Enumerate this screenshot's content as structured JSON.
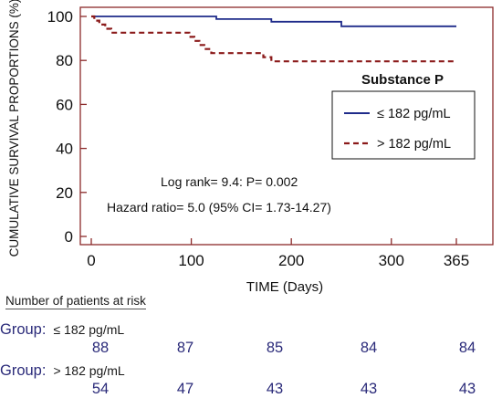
{
  "chart_data": {
    "type": "line",
    "title": "",
    "xlabel": "TIME (Days)",
    "ylabel": "CUMULATIVE SURVIVAL PROPORTIONS (%)",
    "xlim": [
      0,
      365
    ],
    "ylim": [
      0,
      100
    ],
    "xticks": [
      0,
      100,
      200,
      300,
      365
    ],
    "yticks": [
      0,
      20,
      40,
      60,
      80,
      100
    ],
    "grid": false,
    "legend": {
      "title": "Substance P",
      "placement": "right",
      "entries": [
        "≤ 182 pg/mL",
        "> 182 pg/mL"
      ]
    },
    "series": [
      {
        "name": "≤ 182 pg/mL",
        "color": "#1f2b8a",
        "style": "solid",
        "step_points": [
          [
            0,
            100
          ],
          [
            125,
            100
          ],
          [
            125,
            98.8
          ],
          [
            180,
            98.8
          ],
          [
            180,
            97.6
          ],
          [
            250,
            97.6
          ],
          [
            250,
            96.4
          ],
          [
            250,
            95.5
          ],
          [
            365,
            95.5
          ]
        ]
      },
      {
        "name": "> 182 pg/mL",
        "color": "#8b1a1a",
        "style": "dashed",
        "step_points": [
          [
            0,
            100
          ],
          [
            3,
            100
          ],
          [
            3,
            98.1
          ],
          [
            8,
            98.1
          ],
          [
            8,
            96.3
          ],
          [
            14,
            96.3
          ],
          [
            14,
            94.4
          ],
          [
            20,
            94.4
          ],
          [
            20,
            92.6
          ],
          [
            98,
            92.6
          ],
          [
            98,
            90.7
          ],
          [
            103,
            90.7
          ],
          [
            103,
            88.9
          ],
          [
            108,
            88.9
          ],
          [
            108,
            87
          ],
          [
            113,
            87
          ],
          [
            113,
            85.2
          ],
          [
            120,
            85.2
          ],
          [
            120,
            83.3
          ],
          [
            172,
            83.3
          ],
          [
            172,
            81.5
          ],
          [
            180,
            81.5
          ],
          [
            180,
            79.6
          ],
          [
            365,
            79.6
          ]
        ]
      }
    ],
    "annotations": [
      "Log rank= 9.4: P= 0.002",
      "Hazard ratio= 5.0 (95% CI= 1.73-14.27)"
    ]
  },
  "risk_table": {
    "title": "Number of patients at risk",
    "groups": [
      {
        "label": "Group:",
        "threshold": "≤ 182 pg/mL",
        "counts": [
          "88",
          "87",
          "85",
          "84",
          "84"
        ]
      },
      {
        "label": "Group:",
        "threshold": "> 182 pg/mL",
        "counts": [
          "54",
          "47",
          "43",
          "43",
          "43"
        ]
      }
    ]
  }
}
